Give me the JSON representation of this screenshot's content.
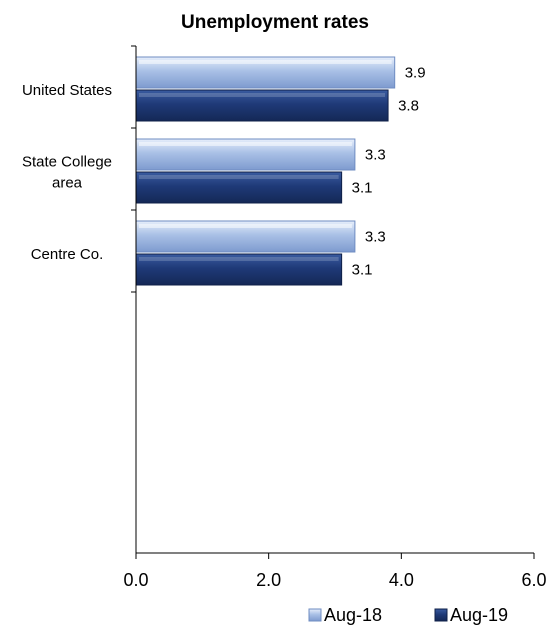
{
  "chart_data": {
    "type": "bar",
    "orientation": "horizontal",
    "title": "Unemployment rates",
    "categories": [
      "United States",
      "State College area",
      "Centre Co."
    ],
    "category_label_lines": [
      [
        "United States"
      ],
      [
        "State College",
        "area"
      ],
      [
        "Centre Co."
      ]
    ],
    "series": [
      {
        "name": "Aug-18",
        "values": [
          3.9,
          3.3,
          3.3
        ],
        "color": "#9fb7e0",
        "value_labels": [
          "3.9",
          "3.3",
          "3.3"
        ]
      },
      {
        "name": "Aug-19",
        "values": [
          3.8,
          3.1,
          3.1
        ],
        "color": "#1f3a78",
        "value_labels": [
          "3.8",
          "3.1",
          "3.1"
        ]
      }
    ],
    "xlim": [
      0,
      6
    ],
    "xticks": [
      0,
      2,
      4,
      6
    ],
    "xtick_labels": [
      "0.0",
      "2.0",
      "4.0",
      "6.0"
    ],
    "xlabel": "",
    "ylabel": "",
    "grid": false,
    "legend_position": "bottom-right"
  }
}
